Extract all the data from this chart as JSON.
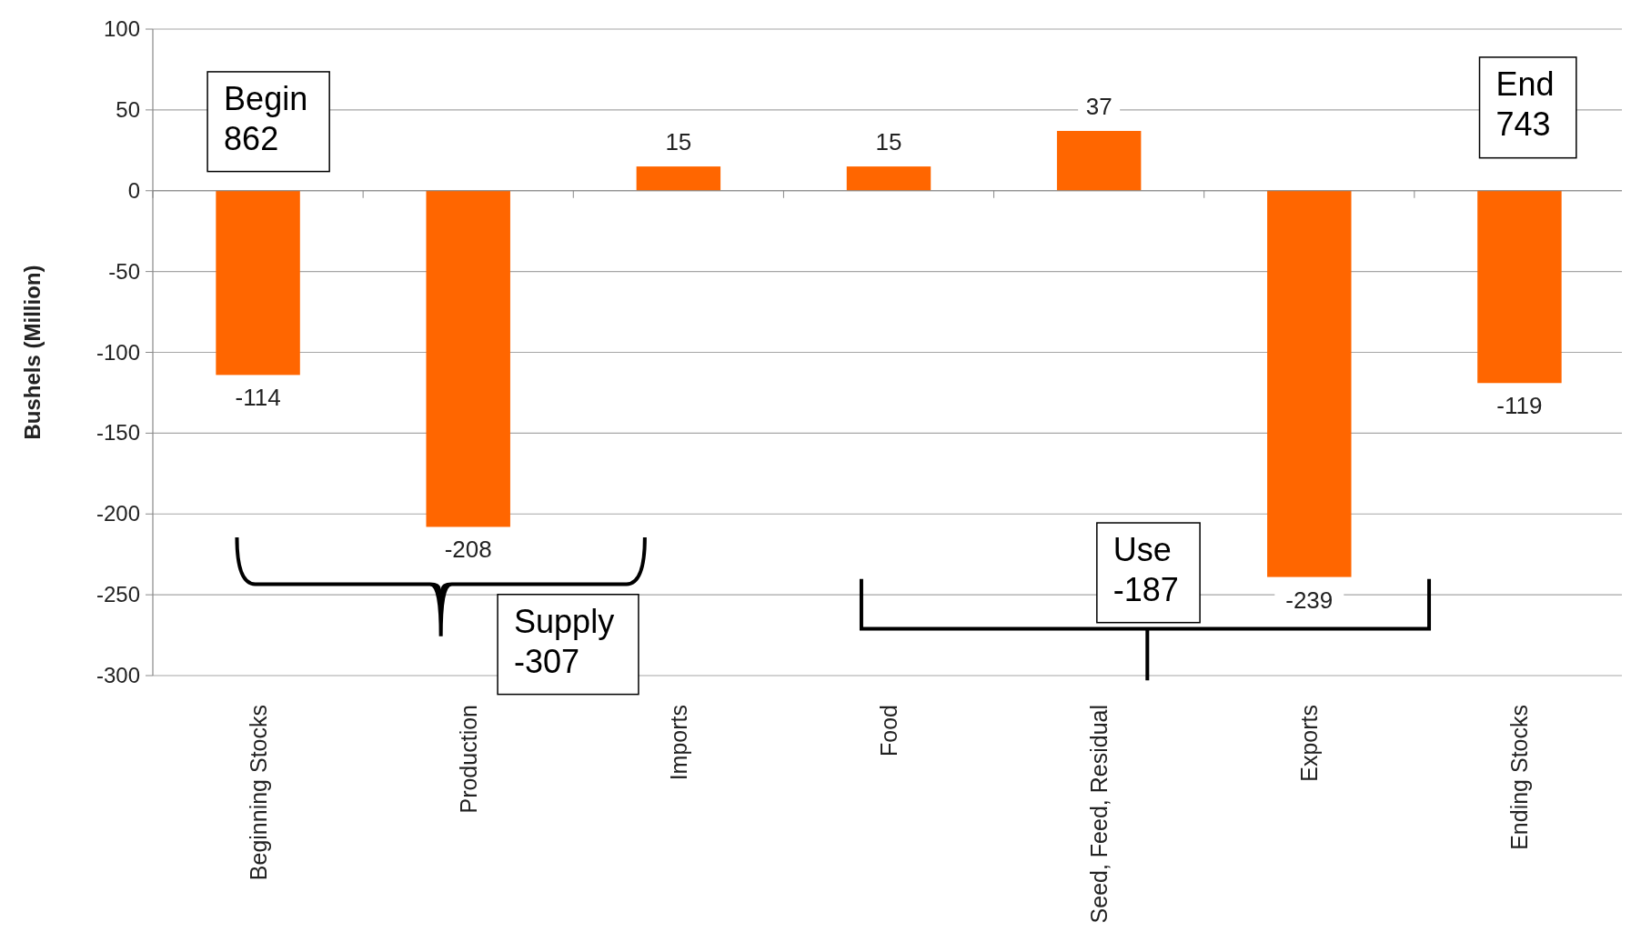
{
  "chart_data": {
    "type": "bar",
    "ylabel": "Bushels (Million)",
    "categories": [
      "Beginning Stocks",
      "Production",
      "Imports",
      "Food",
      "Seed, Feed, Residual",
      "Exports",
      "Ending Stocks"
    ],
    "values": [
      -114,
      -208,
      15,
      15,
      37,
      -239,
      -119
    ],
    "color": "#ff6600",
    "ylim": [
      -300,
      100
    ],
    "yticks": [
      -300,
      -250,
      -200,
      -150,
      -100,
      -50,
      0,
      50,
      100
    ],
    "grid": "y",
    "data_labels": true,
    "annotations": [
      "Begin\n862",
      "End\n743",
      "Supply\n-307",
      "Use\n-187"
    ]
  }
}
